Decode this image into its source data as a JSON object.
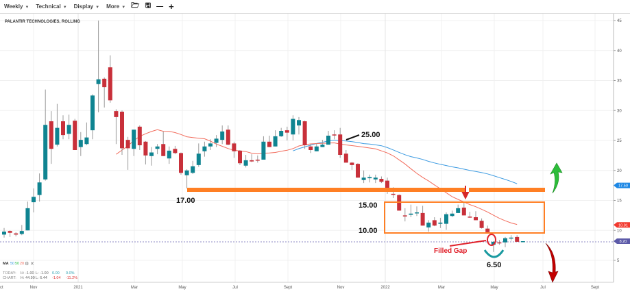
{
  "toolbar": {
    "items": [
      "Weekly",
      "Technical",
      "Display",
      "More"
    ],
    "icons": [
      "folder-icon",
      "save-icon",
      "zoom-out-icon",
      "zoom-in-icon"
    ]
  },
  "chart_data": {
    "type": "candlestick",
    "title": "PALANTIR TECHNOLOGIES, ROLLING",
    "ylim": [
      2,
      46
    ],
    "yticks": [
      5,
      10,
      15,
      20,
      25,
      30,
      35,
      40,
      45
    ],
    "xticks": [
      "ct",
      "Nov",
      "2021",
      "Mar",
      "May",
      "Jul",
      "Sept",
      "Nov",
      "2022",
      "Mar",
      "May",
      "Jul",
      "Sept"
    ],
    "grid": true,
    "candles_ohlc": [
      [
        9.3,
        10.4,
        8.8,
        9.8
      ],
      [
        9.9,
        10.0,
        8.9,
        9.6
      ],
      [
        9.5,
        9.7,
        9.0,
        9.3
      ],
      [
        9.4,
        10.9,
        9.2,
        9.9
      ],
      [
        10.0,
        14.8,
        10.0,
        13.7
      ],
      [
        14.7,
        17.0,
        13.0,
        15.6
      ],
      [
        15.9,
        19.5,
        14.8,
        18.0
      ],
      [
        18.5,
        33.5,
        18.3,
        27.6
      ],
      [
        28.2,
        29.9,
        21.1,
        23.6
      ],
      [
        24.3,
        31.1,
        24.0,
        27.1
      ],
      [
        28.2,
        29.2,
        25.2,
        25.9
      ],
      [
        26.1,
        29.3,
        25.2,
        27.6
      ],
      [
        28.3,
        28.6,
        23.4,
        23.4
      ],
      [
        23.9,
        26.4,
        22.4,
        25.1
      ],
      [
        24.4,
        28.0,
        24.2,
        25.5
      ],
      [
        26.7,
        32.7,
        25.2,
        32.5
      ],
      [
        34.4,
        45.0,
        29.7,
        35.2
      ],
      [
        35.3,
        35.5,
        30.5,
        33.9
      ],
      [
        37.2,
        39.2,
        31.3,
        31.7
      ],
      [
        29.9,
        30.2,
        24.4,
        28.9
      ],
      [
        29.8,
        30.0,
        22.6,
        23.7
      ],
      [
        25.1,
        25.6,
        20.1,
        23.7
      ],
      [
        23.6,
        26.8,
        22.4,
        26.8
      ],
      [
        27.3,
        27.5,
        23.4,
        24.2
      ],
      [
        24.8,
        24.9,
        21.0,
        22.5
      ],
      [
        22.4,
        23.9,
        20.8,
        23.0
      ],
      [
        23.6,
        24.4,
        22.7,
        24.0
      ],
      [
        24.4,
        26.5,
        22.4,
        22.4
      ],
      [
        22.0,
        24.0,
        21.1,
        23.3
      ],
      [
        23.6,
        24.1,
        22.7,
        22.9
      ],
      [
        22.9,
        23.0,
        19.3,
        19.6
      ],
      [
        19.2,
        20.2,
        17.0,
        20.0
      ],
      [
        19.6,
        21.6,
        19.4,
        20.7
      ],
      [
        20.9,
        24.5,
        20.6,
        22.8
      ],
      [
        23.2,
        24.8,
        22.3,
        24.0
      ],
      [
        24.0,
        25.2,
        23.4,
        24.5
      ],
      [
        24.6,
        25.9,
        23.9,
        25.3
      ],
      [
        25.1,
        27.5,
        24.4,
        26.5
      ],
      [
        26.8,
        27.5,
        24.2,
        24.3
      ],
      [
        24.5,
        24.8,
        22.1,
        23.2
      ],
      [
        23.3,
        23.4,
        20.9,
        21.2
      ],
      [
        20.8,
        22.6,
        20.5,
        21.7
      ],
      [
        21.7,
        22.7,
        21.4,
        21.5
      ],
      [
        21.8,
        22.5,
        21.3,
        21.7
      ],
      [
        21.8,
        25.7,
        21.8,
        24.8
      ],
      [
        24.8,
        25.8,
        23.9,
        23.9
      ],
      [
        24.0,
        26.7,
        24.0,
        25.7
      ],
      [
        25.7,
        27.1,
        25.6,
        26.6
      ],
      [
        26.7,
        27.3,
        25.0,
        26.3
      ],
      [
        26.0,
        29.2,
        25.0,
        28.6
      ],
      [
        27.5,
        28.9,
        26.0,
        28.4
      ],
      [
        28.2,
        28.3,
        23.6,
        24.2
      ],
      [
        24.0,
        24.4,
        22.9,
        23.4
      ],
      [
        23.2,
        24.5,
        23.2,
        24.0
      ],
      [
        23.9,
        25.1,
        23.9,
        24.3
      ],
      [
        24.3,
        26.6,
        24.3,
        25.8
      ],
      [
        26.0,
        26.7,
        25.2,
        25.9
      ],
      [
        26.0,
        27.1,
        22.1,
        22.6
      ],
      [
        22.8,
        23.4,
        21.3,
        21.3
      ],
      [
        21.3,
        21.4,
        20.1,
        20.9
      ],
      [
        21.1,
        21.2,
        18.8,
        18.8
      ],
      [
        18.4,
        20.0,
        17.9,
        18.8
      ],
      [
        18.7,
        19.3,
        18.0,
        18.9
      ],
      [
        18.5,
        19.3,
        17.9,
        18.8
      ],
      [
        18.6,
        19.0,
        17.9,
        18.1
      ],
      [
        18.3,
        18.8,
        16.1,
        17.0
      ],
      [
        16.1,
        17.2,
        15.4,
        16.0
      ],
      [
        15.9,
        16.0,
        13.3,
        13.3
      ],
      [
        12.5,
        13.7,
        11.5,
        12.4
      ],
      [
        12.6,
        14.3,
        12.2,
        12.8
      ],
      [
        12.9,
        14.0,
        12.4,
        13.0
      ],
      [
        12.9,
        14.1,
        10.8,
        10.8
      ],
      [
        10.5,
        11.7,
        9.8,
        11.3
      ],
      [
        11.7,
        12.2,
        10.7,
        10.8
      ],
      [
        11.1,
        12.1,
        10.4,
        11.3
      ],
      [
        11.1,
        13.0,
        10.1,
        12.7
      ],
      [
        12.4,
        13.3,
        12.2,
        12.8
      ],
      [
        12.9,
        14.3,
        12.9,
        13.7
      ],
      [
        13.8,
        14.7,
        12.5,
        12.5
      ],
      [
        12.3,
        13.1,
        12.1,
        12.2
      ],
      [
        12.2,
        13.2,
        11.7,
        11.7
      ],
      [
        11.6,
        12.0,
        10.3,
        10.4
      ],
      [
        10.3,
        10.8,
        9.6,
        9.7
      ],
      [
        7.6,
        8.2,
        6.4,
        8.1
      ],
      [
        8.0,
        8.4,
        7.6,
        7.9
      ],
      [
        8.0,
        8.9,
        7.2,
        8.7
      ],
      [
        8.7,
        9.2,
        8.3,
        8.8
      ],
      [
        8.9,
        9.2,
        8.1,
        8.1
      ],
      [
        8.2,
        8.2,
        8.2,
        8.2
      ]
    ],
    "moving_averages": [
      {
        "name": "50",
        "color": "#3b9ae1",
        "period": 50
      },
      {
        "name": "50",
        "color": "#2fbf4a",
        "period": 50
      },
      {
        "name": "20",
        "color": "#f26b5b",
        "period": 20
      }
    ],
    "price_tags": [
      {
        "value": "17.50",
        "color": "#1e88e5"
      },
      {
        "value": "10.91",
        "color": "#f23a2f"
      },
      {
        "value": "8.20",
        "color": "#5c5aa8"
      }
    ],
    "annotations": {
      "support": "17.00",
      "resistance": "25.00",
      "box_top": "15.00",
      "box_bottom": "10.00",
      "low": "6.50",
      "gap": "Filled Gap"
    },
    "colors": {
      "up": "#0f8491",
      "down": "#c8303a",
      "support_line": "#ff7f24",
      "arrow_up": "#2dbd3a",
      "arrow_down": "#c40000"
    }
  },
  "legend": {
    "ma_label": "MA",
    "ma_periods": [
      "50",
      "50",
      "20"
    ],
    "today": {
      "label": "TODAY:",
      "h": "H: -1.00",
      "l": "L: -1.00",
      "chg": "0.00",
      "pct": "0.0%"
    },
    "chart": {
      "label": "CHART:",
      "h": "H: 44.99",
      "l": "L: 6.44",
      "chg": "-1.04",
      "pct": "-11.2%"
    }
  }
}
